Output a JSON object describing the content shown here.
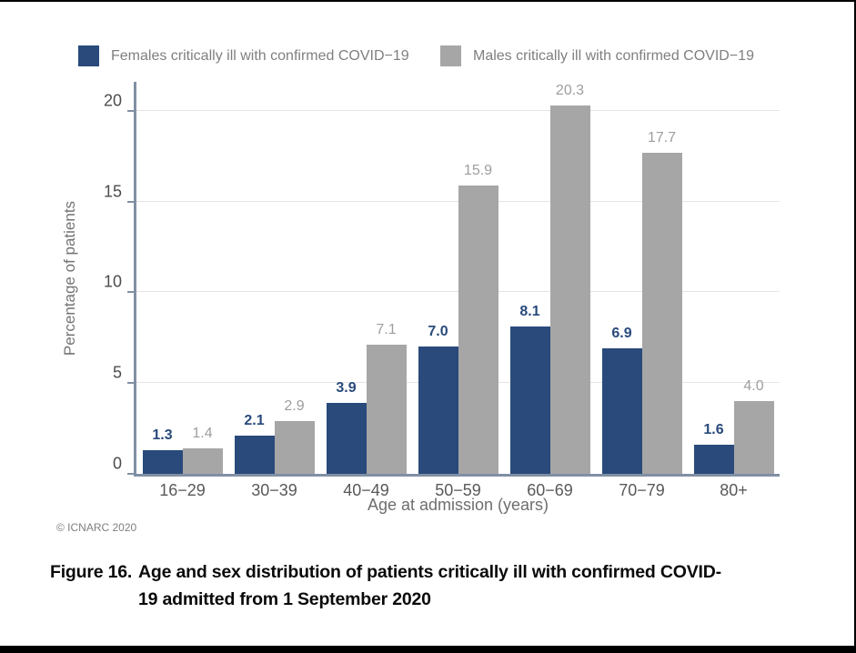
{
  "chart_data": {
    "type": "bar",
    "categories": [
      "16−29",
      "30−39",
      "40−49",
      "50−59",
      "60−69",
      "70−79",
      "80+"
    ],
    "series": [
      {
        "name": "Females critically ill with confirmed COVID−19",
        "color": "#294a7b",
        "values": [
          1.3,
          2.1,
          3.9,
          7.0,
          8.1,
          6.9,
          1.6
        ]
      },
      {
        "name": "Males critically ill with confirmed COVID−19",
        "color": "#a6a6a6",
        "values": [
          1.4,
          2.9,
          7.1,
          15.9,
          20.3,
          17.7,
          4.0
        ]
      }
    ],
    "title": "",
    "xlabel": "Age at admission (years)",
    "ylabel": "Percentage of patients",
    "ylim": [
      0,
      21.6
    ],
    "yticks": [
      0,
      5,
      10,
      15,
      20
    ],
    "grid": "horizontal",
    "legend_position": "top",
    "data_labels_decimals": 1
  },
  "colors": {
    "female_bar": "#294a7b",
    "male_bar": "#a6a6a6",
    "axis": "#8090a4",
    "gridline": "#e4e4e4",
    "page_border": "#000000"
  },
  "footnote": "© ICNARC 2020",
  "caption": {
    "label": "Figure 16.",
    "line1": "Age and sex distribution of patients critically ill with confirmed COVID-",
    "line2": "19 admitted from 1 September 2020"
  }
}
